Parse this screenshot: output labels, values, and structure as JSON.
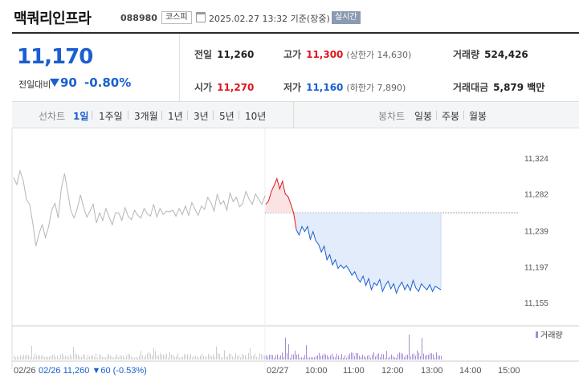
{
  "header": {
    "name": "맥쿼리인프라",
    "code": "088980",
    "market": "코스피",
    "datetime": "2025.02.27 13:32 기준(장중)",
    "realtime": "실시간"
  },
  "quote": {
    "price": "11,170",
    "change_label": "전일대비",
    "change": "90",
    "change_pct": "-0.80%",
    "prev_label": "전일",
    "prev": "11,260",
    "open_label": "시가",
    "open": "11,270",
    "high_label": "고가",
    "high": "11,300",
    "upper_limit": "(상한가 14,630)",
    "low_label": "저가",
    "low": "11,160",
    "lower_limit": "(하한가 7,890)",
    "volume_label": "거래량",
    "volume": "524,426",
    "amount_label": "거래대금",
    "amount": "5,879 백만"
  },
  "tabs": {
    "line_label": "선차트",
    "line_periods": [
      "1일",
      "1주일",
      "3개월",
      "1년",
      "3년",
      "5년",
      "10년"
    ],
    "active_period": "1일",
    "candle_label": "봉차트",
    "candle_periods": [
      "일봉",
      "주봉",
      "월봉"
    ]
  },
  "colors": {
    "up": "#e0161e",
    "down": "#1a5fd0",
    "prev_day_line": "#b5b5b5",
    "down_fill": "#e3ecfa",
    "volume_prev": "#cccccc",
    "volume_today": "#a58bd6"
  },
  "chart_data": {
    "type": "line",
    "y_ticks": [
      "11,324",
      "11,282",
      "11,239",
      "11,197",
      "11,155"
    ],
    "x_ticks": [
      "02/26",
      "02/27",
      "10:00",
      "11:00",
      "12:00",
      "13:00",
      "14:00",
      "15:00"
    ],
    "ylim": [
      11155,
      11324
    ],
    "reference_price": 11260,
    "prev_day_info": "02/26  11,260 ▼60 (-0.53%)",
    "volume_legend": "거래량",
    "series": [
      {
        "values": [
          11301,
          11293,
          11309,
          11298,
          11276,
          11270,
          11248,
          11221,
          11236,
          11246,
          11231,
          11244,
          11264,
          11271,
          11254,
          11289,
          11306,
          11284,
          11262,
          11254,
          11265,
          11281,
          11266,
          11255,
          11262,
          11270,
          11248,
          11260,
          11251,
          11265,
          11255,
          11246,
          11260,
          11260,
          11251,
          11266,
          11256,
          11252,
          11263,
          11257,
          11254,
          11265,
          11259,
          11256,
          11270,
          11255,
          11265,
          11258,
          11262,
          11261,
          11263,
          11256,
          11265,
          11258,
          11268,
          11257,
          11272,
          11264,
          11257,
          11268,
          11264,
          11278,
          11272,
          11262,
          11282,
          11270,
          11274,
          11263,
          11283,
          11273,
          11278,
          11267,
          11271,
          11285,
          11276,
          11270,
          11282,
          11276,
          11270,
          11280
        ]
      },
      {
        "values": [
          11270,
          11274,
          11285,
          11292,
          11300,
          11288,
          11297,
          11282,
          11279,
          11270,
          11260,
          11240,
          11234,
          11244,
          11238,
          11244,
          11229,
          11238,
          11227,
          11223,
          11214,
          11221,
          11205,
          11211,
          11199,
          11205,
          11195,
          11199,
          11195,
          11198,
          11193,
          11187,
          11191,
          11183,
          11179,
          11186,
          11175,
          11183,
          11170,
          11178,
          11175,
          11182,
          11168,
          11175,
          11180,
          11171,
          11177,
          11166,
          11174,
          11179,
          11170,
          11176,
          11169,
          11181,
          11172,
          11168,
          11177,
          11173,
          11170,
          11176,
          11168,
          11174,
          11172,
          11170
        ]
      }
    ]
  }
}
